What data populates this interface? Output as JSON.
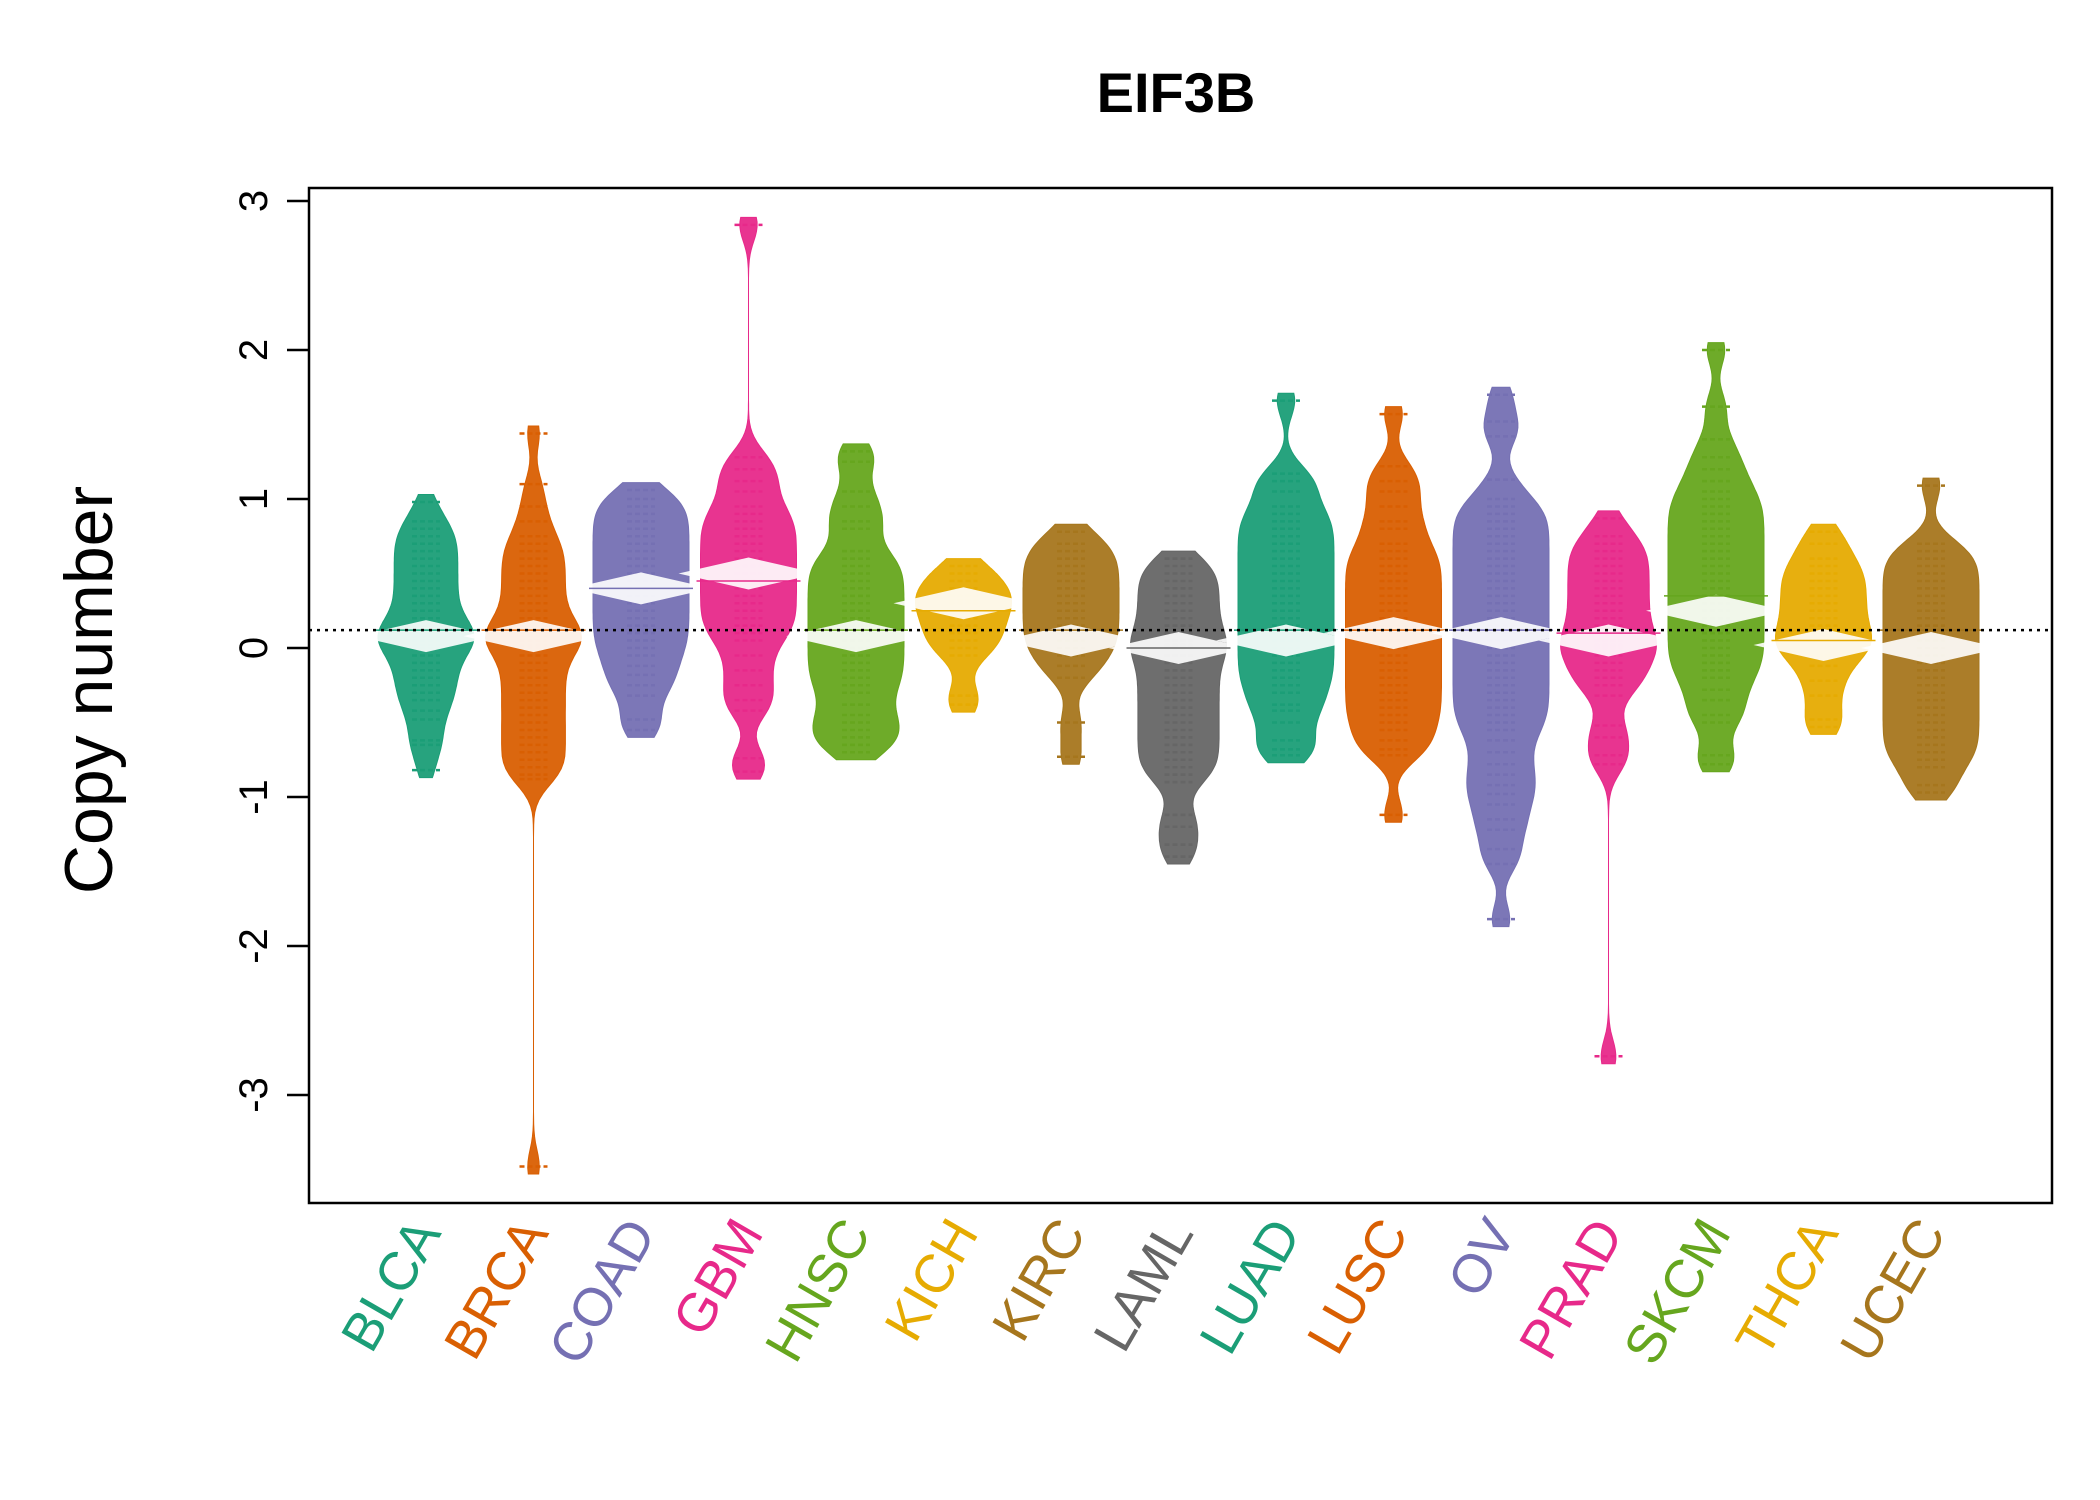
{
  "chart_data": {
    "type": "beanplot",
    "title": "EIF3B",
    "xlabel": "",
    "ylabel": "Copy number",
    "ylim": [
      -3.7,
      3.1
    ],
    "yticks": [
      "-3",
      "-2",
      "-1",
      "0",
      "1",
      "2",
      "3"
    ],
    "ytick_values": [
      -3,
      -2,
      -1,
      0,
      1,
      2,
      3
    ],
    "reference_line": 0.12,
    "reference_line_style": "dotted",
    "legend": "none",
    "grid": false,
    "categories": [
      "BLCA",
      "BRCA",
      "COAD",
      "GBM",
      "HNSC",
      "KICH",
      "KIRC",
      "LAML",
      "LUAD",
      "LUSC",
      "OV",
      "PRAD",
      "SKCM",
      "THCA",
      "UCEC"
    ],
    "colors": [
      "#1B9E77",
      "#D95F02",
      "#7570B3",
      "#E7298A",
      "#66A61E",
      "#E6AB02",
      "#A6761D",
      "#666666",
      "#1B9E77",
      "#D95F02",
      "#7570B3",
      "#E7298A",
      "#66A61E",
      "#E6AB02",
      "#A6761D"
    ],
    "beans": [
      {
        "category": "BLCA",
        "min": -0.82,
        "max": 0.98,
        "mean": 0.12,
        "median": 0.08,
        "points": [
          -0.82,
          -0.65,
          -0.62,
          -0.48,
          -0.42,
          -0.35,
          -0.3,
          -0.25,
          -0.2,
          -0.15,
          -0.1,
          -0.05,
          0.0,
          0.02,
          0.05,
          0.08,
          0.1,
          0.12,
          0.15,
          0.2,
          0.25,
          0.3,
          0.35,
          0.4,
          0.45,
          0.5,
          0.55,
          0.6,
          0.65,
          0.7,
          0.75,
          0.8,
          0.85,
          0.98
        ]
      },
      {
        "category": "BRCA",
        "min": -3.48,
        "max": 1.44,
        "mean": 0.12,
        "median": 0.08,
        "points": [
          -3.48,
          -0.88,
          -0.85,
          -0.8,
          -0.75,
          -0.7,
          -0.65,
          -0.6,
          -0.55,
          -0.5,
          -0.45,
          -0.4,
          -0.35,
          -0.3,
          -0.25,
          -0.2,
          -0.15,
          -0.1,
          -0.05,
          0.0,
          0.02,
          0.05,
          0.08,
          0.1,
          0.12,
          0.15,
          0.2,
          0.25,
          0.3,
          0.35,
          0.4,
          0.45,
          0.5,
          0.55,
          0.6,
          0.65,
          0.7,
          0.75,
          0.85,
          0.95,
          1.1,
          1.44
        ]
      },
      {
        "category": "COAD",
        "min": -0.55,
        "max": 1.06,
        "mean": 0.4,
        "median": 0.4,
        "points": [
          -0.55,
          -0.48,
          -0.32,
          -0.25,
          -0.18,
          -0.12,
          -0.05,
          0.0,
          0.05,
          0.1,
          0.15,
          0.2,
          0.25,
          0.3,
          0.35,
          0.4,
          0.45,
          0.5,
          0.55,
          0.6,
          0.65,
          0.7,
          0.75,
          0.8,
          0.85,
          0.9,
          0.95,
          1.0,
          1.06
        ]
      },
      {
        "category": "GBM",
        "min": -0.83,
        "max": 2.84,
        "mean": 0.45,
        "median": 0.5,
        "points": [
          -0.83,
          -0.74,
          -0.42,
          -0.35,
          -0.25,
          -0.15,
          -0.05,
          0.05,
          0.1,
          0.15,
          0.2,
          0.25,
          0.3,
          0.35,
          0.4,
          0.45,
          0.5,
          0.55,
          0.6,
          0.65,
          0.7,
          0.75,
          0.8,
          0.85,
          0.9,
          0.95,
          1.05,
          1.12,
          1.2,
          1.28,
          2.84
        ]
      },
      {
        "category": "HNSC",
        "min": -0.7,
        "max": 1.32,
        "mean": 0.12,
        "median": 0.08,
        "points": [
          -0.7,
          -0.65,
          -0.6,
          -0.55,
          -0.5,
          -0.45,
          -0.38,
          -0.3,
          -0.25,
          -0.2,
          -0.15,
          -0.1,
          -0.05,
          0.0,
          0.05,
          0.1,
          0.15,
          0.2,
          0.25,
          0.3,
          0.35,
          0.4,
          0.45,
          0.5,
          0.55,
          0.6,
          0.65,
          0.8,
          0.85,
          0.95,
          1.05,
          1.25,
          1.32
        ]
      },
      {
        "category": "KICH",
        "min": -0.38,
        "max": 0.55,
        "mean": 0.25,
        "median": 0.3,
        "points": [
          -0.38,
          -0.32,
          -0.05,
          0.0,
          0.05,
          0.1,
          0.15,
          0.2,
          0.25,
          0.3,
          0.32,
          0.35,
          0.4,
          0.45,
          0.5,
          0.55
        ]
      },
      {
        "category": "KIRC",
        "min": -0.73,
        "max": 0.78,
        "mean": 0.12,
        "median": 0.05,
        "points": [
          -0.73,
          -0.5,
          -0.2,
          -0.12,
          -0.05,
          0.0,
          0.05,
          0.1,
          0.15,
          0.2,
          0.25,
          0.3,
          0.35,
          0.4,
          0.45,
          0.5,
          0.55,
          0.6,
          0.65,
          0.7,
          0.78
        ]
      },
      {
        "category": "LAML",
        "min": -1.4,
        "max": 0.6,
        "mean": 0.0,
        "median": 0.0,
        "points": [
          -1.4,
          -1.32,
          -1.2,
          -1.12,
          -0.9,
          -0.85,
          -0.8,
          -0.75,
          -0.7,
          -0.65,
          -0.6,
          -0.55,
          -0.5,
          -0.45,
          -0.4,
          -0.35,
          -0.3,
          -0.25,
          -0.2,
          -0.15,
          -0.1,
          -0.05,
          0.0,
          0.02,
          0.05,
          0.1,
          0.15,
          0.2,
          0.25,
          0.3,
          0.35,
          0.4,
          0.45,
          0.5,
          0.55,
          0.6
        ]
      },
      {
        "category": "LUAD",
        "min": -0.72,
        "max": 1.66,
        "mean": 0.12,
        "median": 0.05,
        "points": [
          -0.72,
          -0.68,
          -0.62,
          -0.5,
          -0.42,
          -0.38,
          -0.3,
          -0.25,
          -0.2,
          -0.15,
          -0.1,
          -0.05,
          0.0,
          0.05,
          0.1,
          0.15,
          0.2,
          0.25,
          0.3,
          0.35,
          0.4,
          0.45,
          0.5,
          0.55,
          0.6,
          0.65,
          0.7,
          0.75,
          0.8,
          0.85,
          0.9,
          0.95,
          1.05,
          1.12,
          1.17,
          1.66
        ]
      },
      {
        "category": "LUSC",
        "min": -1.12,
        "max": 1.57,
        "mean": 0.12,
        "median": 0.1,
        "points": [
          -1.12,
          -0.72,
          -0.68,
          -0.62,
          -0.55,
          -0.5,
          -0.45,
          -0.4,
          -0.35,
          -0.3,
          -0.25,
          -0.2,
          -0.15,
          -0.1,
          -0.05,
          0.0,
          0.05,
          0.1,
          0.15,
          0.2,
          0.25,
          0.3,
          0.35,
          0.4,
          0.45,
          0.5,
          0.55,
          0.6,
          0.65,
          0.7,
          0.8,
          0.85,
          0.95,
          1.05,
          1.12,
          1.22,
          1.57
        ]
      },
      {
        "category": "OV",
        "min": -1.82,
        "max": 1.7,
        "mean": 0.12,
        "median": 0.1,
        "points": [
          -1.82,
          -1.45,
          -1.35,
          -1.22,
          -1.15,
          -1.05,
          -0.98,
          -0.92,
          -0.85,
          -0.78,
          -0.7,
          -0.62,
          -0.55,
          -0.5,
          -0.45,
          -0.4,
          -0.35,
          -0.3,
          -0.25,
          -0.2,
          -0.15,
          -0.1,
          -0.05,
          0.0,
          0.05,
          0.1,
          0.15,
          0.2,
          0.25,
          0.3,
          0.35,
          0.4,
          0.45,
          0.5,
          0.55,
          0.6,
          0.65,
          0.7,
          0.75,
          0.8,
          0.85,
          0.9,
          0.95,
          1.0,
          1.13,
          1.42,
          1.52,
          1.7
        ]
      },
      {
        "category": "PRAD",
        "min": -2.74,
        "max": 0.87,
        "mean": 0.1,
        "median": 0.05,
        "points": [
          -2.74,
          -0.78,
          -0.72,
          -0.6,
          -0.52,
          -0.32,
          -0.25,
          -0.2,
          -0.15,
          -0.1,
          -0.05,
          0.0,
          0.02,
          0.05,
          0.1,
          0.15,
          0.2,
          0.25,
          0.3,
          0.35,
          0.4,
          0.45,
          0.5,
          0.55,
          0.6,
          0.65,
          0.7,
          0.75,
          0.87
        ]
      },
      {
        "category": "SKCM",
        "min": -0.78,
        "max": 2.0,
        "mean": 0.35,
        "median": 0.25,
        "points": [
          -0.78,
          -0.72,
          -0.5,
          -0.45,
          -0.35,
          -0.28,
          -0.2,
          -0.15,
          -0.1,
          -0.05,
          0.0,
          0.05,
          0.1,
          0.15,
          0.2,
          0.25,
          0.3,
          0.35,
          0.4,
          0.45,
          0.5,
          0.55,
          0.6,
          0.65,
          0.7,
          0.75,
          0.8,
          0.85,
          0.9,
          0.95,
          1.0,
          1.05,
          1.12,
          1.2,
          1.28,
          1.4,
          1.62,
          2.0
        ]
      },
      {
        "category": "THCA",
        "min": -0.53,
        "max": 0.78,
        "mean": 0.05,
        "median": 0.02,
        "points": [
          -0.53,
          -0.48,
          -0.32,
          -0.22,
          -0.12,
          -0.05,
          0.0,
          0.02,
          0.05,
          0.1,
          0.15,
          0.2,
          0.25,
          0.3,
          0.35,
          0.4,
          0.45,
          0.5,
          0.55,
          0.6,
          0.7,
          0.78
        ]
      },
      {
        "category": "UCEC",
        "min": -0.97,
        "max": 1.09,
        "mean": 0.12,
        "median": 0.0,
        "points": [
          -0.97,
          -0.92,
          -0.8,
          -0.75,
          -0.7,
          -0.65,
          -0.6,
          -0.55,
          -0.5,
          -0.45,
          -0.4,
          -0.35,
          -0.3,
          -0.25,
          -0.2,
          -0.15,
          -0.1,
          -0.05,
          0.0,
          0.05,
          0.1,
          0.15,
          0.2,
          0.25,
          0.3,
          0.35,
          0.4,
          0.45,
          0.5,
          0.55,
          0.6,
          0.65,
          0.7,
          1.09
        ]
      }
    ]
  }
}
